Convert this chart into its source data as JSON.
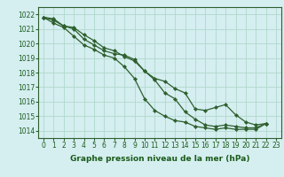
{
  "title": "Graphe pression niveau de la mer (hPa)",
  "bg_color": "#d5eef0",
  "plot_bg_color": "#d5eef0",
  "grid_color": "#b0d8cc",
  "line_color": "#2d5f2d",
  "marker_color": "#2d5f2d",
  "spine_color": "#2d5f2d",
  "label_color": "#1a5c1a",
  "xlim": [
    -0.5,
    23.5
  ],
  "ylim": [
    1013.5,
    1022.5
  ],
  "yticks": [
    1014,
    1015,
    1016,
    1017,
    1018,
    1019,
    1020,
    1021,
    1022
  ],
  "xticks": [
    0,
    1,
    2,
    3,
    4,
    5,
    6,
    7,
    8,
    9,
    10,
    11,
    12,
    13,
    14,
    15,
    16,
    17,
    18,
    19,
    20,
    21,
    22,
    23
  ],
  "series": [
    {
      "x": [
        0,
        1,
        2,
        3,
        4,
        5,
        6,
        7,
        8,
        9,
        10,
        11,
        12,
        13,
        14,
        15,
        16,
        17,
        18,
        19,
        20,
        21,
        22
      ],
      "y": [
        1021.8,
        1021.7,
        1021.2,
        1021.1,
        1020.6,
        1020.2,
        1019.7,
        1019.5,
        1019.1,
        1018.8,
        1018.1,
        1017.5,
        1016.6,
        1016.2,
        1015.3,
        1014.8,
        1014.4,
        1014.3,
        1014.4,
        1014.3,
        1014.2,
        1014.2,
        1014.5
      ]
    },
    {
      "x": [
        0,
        1,
        2,
        3,
        4,
        5,
        6,
        7,
        8,
        9,
        10,
        11,
        12,
        13,
        14,
        15,
        16,
        17,
        18,
        19,
        20,
        21,
        22
      ],
      "y": [
        1021.8,
        1021.4,
        1021.1,
        1020.5,
        1019.9,
        1019.6,
        1019.2,
        1019.0,
        1018.4,
        1017.6,
        1016.2,
        1015.4,
        1015.0,
        1014.7,
        1014.6,
        1014.3,
        1014.2,
        1014.1,
        1014.2,
        1014.1,
        1014.1,
        1014.1,
        1014.5
      ]
    },
    {
      "x": [
        0,
        1,
        2,
        3,
        4,
        5,
        6,
        7,
        8,
        9,
        10,
        11,
        12,
        13,
        14,
        15,
        16,
        17,
        18,
        19,
        20,
        21,
        22
      ],
      "y": [
        1021.8,
        1021.6,
        1021.2,
        1021.0,
        1020.3,
        1019.9,
        1019.5,
        1019.3,
        1019.2,
        1018.9,
        1018.1,
        1017.6,
        1017.4,
        1016.9,
        1016.6,
        1015.5,
        1015.4,
        1015.6,
        1015.8,
        1015.1,
        1014.6,
        1014.4,
        1014.5
      ]
    }
  ],
  "tick_fontsize": 5.5,
  "label_fontsize": 6.5,
  "linewidth": 0.9,
  "markersize": 2.2
}
